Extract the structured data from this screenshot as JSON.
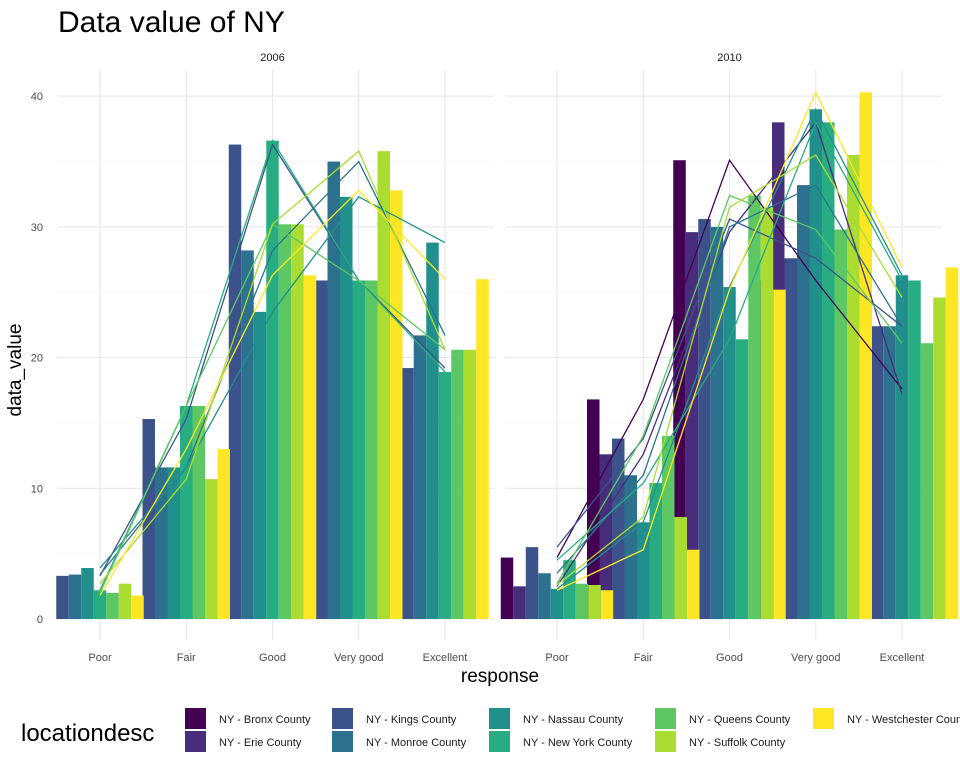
{
  "chart_data": {
    "type": "bar",
    "title": "Data value of NY",
    "xlabel": "response",
    "ylabel": "data_value",
    "ylim": [
      0,
      42
    ],
    "yticks": [
      0,
      10,
      20,
      30,
      40
    ],
    "grid": true,
    "legend_position": "bottom",
    "legend_title": "locationdesc",
    "categories": [
      "Poor",
      "Fair",
      "Good",
      "Very good",
      "Excellent"
    ],
    "overlay": "line",
    "colors": [
      "#440154",
      "#472D7B",
      "#3B528B",
      "#2C728E",
      "#21908C",
      "#27AD81",
      "#5DC863",
      "#AADC32",
      "#FDE725"
    ],
    "locations": [
      "NY - Bronx County",
      "NY - Erie County",
      "NY - Kings County",
      "NY - Monroe County",
      "NY - Nassau County",
      "NY - New York County",
      "NY - Queens County",
      "NY - Suffolk County",
      "NY - Westchester County"
    ],
    "panels": [
      {
        "label": "2006",
        "series": [
          {
            "name": "NY - Kings County",
            "color_index": 2,
            "values": [
              3.3,
              15.3,
              36.3,
              25.9,
              19.2
            ]
          },
          {
            "name": "NY - Monroe County",
            "color_index": 3,
            "values": [
              3.4,
              11.6,
              28.2,
              35.0,
              21.7
            ]
          },
          {
            "name": "NY - Nassau County",
            "color_index": 4,
            "values": [
              3.9,
              11.6,
              23.5,
              32.3,
              28.8
            ]
          },
          {
            "name": "NY - New York County",
            "color_index": 5,
            "values": [
              2.2,
              16.3,
              36.6,
              25.9,
              18.9
            ]
          },
          {
            "name": "NY - Queens County",
            "color_index": 6,
            "values": [
              2.0,
              16.3,
              30.2,
              25.9,
              20.6
            ]
          },
          {
            "name": "NY - Suffolk County",
            "color_index": 7,
            "values": [
              2.7,
              10.7,
              30.2,
              35.8,
              20.6
            ]
          },
          {
            "name": "NY - Westchester County",
            "color_index": 8,
            "values": [
              1.8,
              13.0,
              26.3,
              32.8,
              26.0
            ]
          }
        ]
      },
      {
        "label": "2010",
        "series": [
          {
            "name": "NY - Bronx County",
            "color_index": 0,
            "values": [
              4.7,
              16.8,
              35.1,
              25.9,
              17.6
            ]
          },
          {
            "name": "NY - Erie County",
            "color_index": 1,
            "values": [
              2.5,
              12.6,
              29.6,
              38.0,
              17.2
            ]
          },
          {
            "name": "NY - Kings County",
            "color_index": 2,
            "values": [
              5.5,
              13.8,
              30.6,
              27.6,
              22.4
            ]
          },
          {
            "name": "NY - Monroe County",
            "color_index": 3,
            "values": [
              3.5,
              11.0,
              30.0,
              33.2,
              22.4
            ]
          },
          {
            "name": "NY - Nassau County",
            "color_index": 4,
            "values": [
              2.3,
              7.4,
              25.4,
              39.0,
              26.3
            ]
          },
          {
            "name": "NY - New York County",
            "color_index": 5,
            "values": [
              4.5,
              10.4,
              21.4,
              38.0,
              25.9
            ]
          },
          {
            "name": "NY - Queens County",
            "color_index": 6,
            "values": [
              2.7,
              14.0,
              32.4,
              29.8,
              21.1
            ]
          },
          {
            "name": "NY - Suffolk County",
            "color_index": 7,
            "values": [
              2.6,
              7.8,
              31.5,
              35.5,
              24.6
            ]
          },
          {
            "name": "NY - Westchester County",
            "color_index": 8,
            "values": [
              2.2,
              5.3,
              25.2,
              40.3,
              26.9
            ]
          }
        ]
      }
    ]
  }
}
